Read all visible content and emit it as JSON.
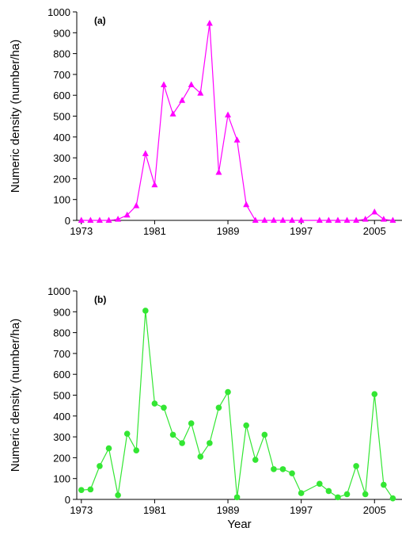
{
  "chart_data": [
    {
      "type": "line",
      "annotation": "(a)",
      "ylabel": "Numeric density (number/ha)",
      "x": [
        1973,
        1974,
        1975,
        1976,
        1977,
        1978,
        1979,
        1980,
        1981,
        1982,
        1983,
        1984,
        1985,
        1986,
        1987,
        1988,
        1989,
        1990,
        1991,
        1992,
        1993,
        1994,
        1995,
        1996,
        1997,
        1999,
        2000,
        2001,
        2002,
        2003,
        2004,
        2005,
        2006,
        2007
      ],
      "series": [
        {
          "color": "#ff00ff",
          "marker": "triangle",
          "values": [
            0,
            0,
            0,
            0,
            5,
            25,
            70,
            320,
            170,
            650,
            510,
            575,
            650,
            610,
            945,
            230,
            505,
            385,
            75,
            0,
            0,
            0,
            0,
            0,
            0,
            0,
            0,
            0,
            0,
            0,
            5,
            40,
            5,
            0
          ]
        }
      ],
      "xlim": [
        1972.5,
        2008
      ],
      "xticks": [
        1973,
        1981,
        1989,
        1997,
        2005
      ],
      "ylim": [
        0,
        1000
      ],
      "yticks": [
        0,
        100,
        200,
        300,
        400,
        500,
        600,
        700,
        800,
        900,
        1000
      ]
    },
    {
      "type": "line",
      "annotation": "(b)",
      "ylabel": "Numeric density (number/ha)",
      "xlabel": "Year",
      "x": [
        1973,
        1974,
        1975,
        1976,
        1977,
        1978,
        1979,
        1980,
        1981,
        1982,
        1983,
        1984,
        1985,
        1986,
        1987,
        1988,
        1989,
        1990,
        1991,
        1992,
        1993,
        1994,
        1995,
        1996,
        1997,
        1999,
        2000,
        2001,
        2002,
        2003,
        2004,
        2005,
        2006,
        2007
      ],
      "series": [
        {
          "color": "#33e633",
          "marker": "circle",
          "values": [
            45,
            48,
            160,
            245,
            20,
            315,
            235,
            905,
            460,
            440,
            310,
            270,
            365,
            205,
            270,
            440,
            515,
            10,
            355,
            190,
            310,
            145,
            145,
            125,
            30,
            75,
            40,
            10,
            25,
            160,
            25,
            505,
            70,
            5
          ]
        }
      ],
      "xlim": [
        1972.5,
        2008
      ],
      "xticks": [
        1973,
        1981,
        1989,
        1997,
        2005
      ],
      "ylim": [
        0,
        1000
      ],
      "yticks": [
        0,
        100,
        200,
        300,
        400,
        500,
        600,
        700,
        800,
        900,
        1000
      ]
    }
  ]
}
